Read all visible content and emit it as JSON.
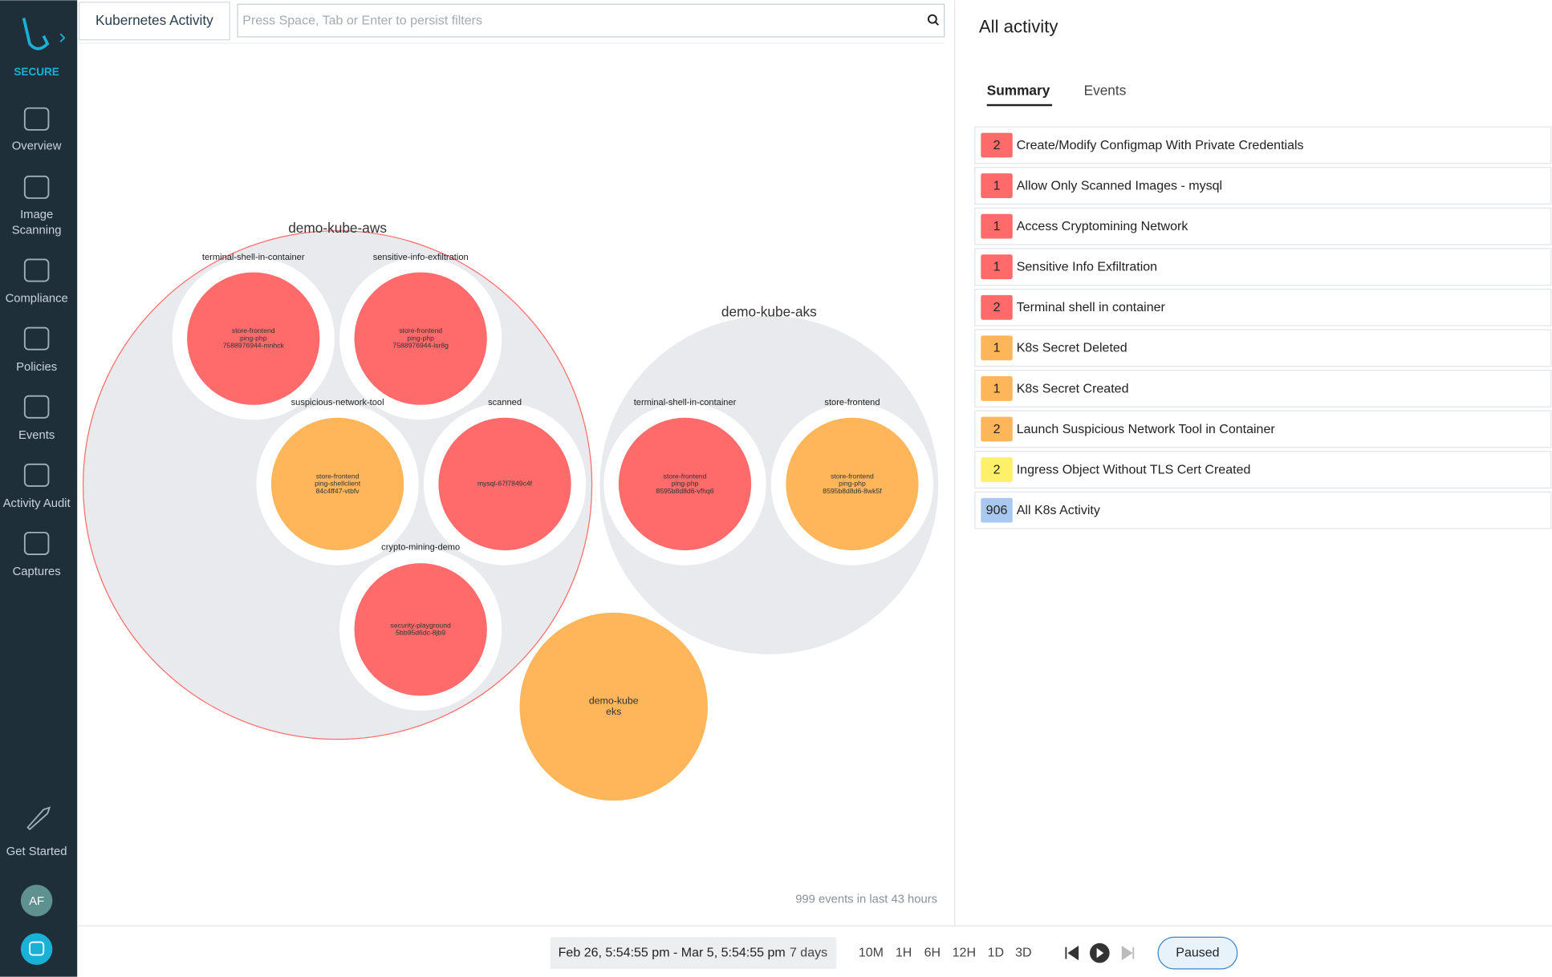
{
  "sidebar": {
    "brand": "SECURE",
    "nav": [
      [
        "Overview"
      ],
      [
        "Image",
        "Scanning"
      ],
      [
        "Compliance"
      ],
      [
        "Policies"
      ],
      [
        "Events"
      ],
      [
        "Activity Audit"
      ],
      [
        "Captures"
      ]
    ],
    "get_started": "Get Started",
    "avatar": "AF"
  },
  "header": {
    "title": "Kubernetes Activity",
    "search_placeholder": "Press Space, Tab or Enter to persist filters"
  },
  "graph": {
    "clusters": [
      {
        "label": "demo-kube-aws",
        "nodes": [
          {
            "label": "terminal-shell-in-container",
            "lines": [
              "store-frontend",
              "ping-php",
              "7588976944-mnhck"
            ],
            "color": "#ff6b6b"
          },
          {
            "label": "sensitive-info-exfiltration",
            "lines": [
              "store-frontend",
              "ping-php",
              "7588976944-lsr8g"
            ],
            "color": "#ff6b6b"
          },
          {
            "label": "suspicious-network-tool",
            "lines": [
              "store-frontend",
              "ping-shellclient",
              "84c4ff47-vtbfv"
            ],
            "color": "#ffb55a"
          },
          {
            "label": "scanned",
            "lines": [
              "mysql-67f7849c4f"
            ],
            "color": "#ff6b6b"
          },
          {
            "label": "crypto-mining-demo",
            "lines": [
              "security-playground",
              "5bb95d6dc-8jb9"
            ],
            "color": "#ff6b6b"
          }
        ]
      },
      {
        "label": "demo-kube-aks",
        "nodes": [
          {
            "label": "terminal-shell-in-container",
            "lines": [
              "store-frontend",
              "ping-php",
              "8595b8d8d6-vfhq6"
            ],
            "color": "#ff6b6b"
          },
          {
            "label": "store-frontend",
            "lines": [
              "store-frontend",
              "ping-php",
              "8595b8d8d6-8wk5f"
            ],
            "color": "#ffb55a"
          }
        ]
      },
      {
        "lines": [
          "demo-kube",
          "eks"
        ],
        "color": "#ffb55a"
      }
    ],
    "footer_note": "999 events in last 43 hours"
  },
  "panel": {
    "title": "All activity",
    "tabs": [
      "Summary",
      "Events"
    ],
    "items": [
      {
        "count": 2,
        "label": "Create/Modify Configmap With Private Credentials",
        "color": "#ff6b6b"
      },
      {
        "count": 1,
        "label": "Allow Only Scanned Images - mysql",
        "color": "#ff6b6b"
      },
      {
        "count": 1,
        "label": "Access Cryptomining Network",
        "color": "#ff6b6b"
      },
      {
        "count": 1,
        "label": "Sensitive Info Exfiltration",
        "color": "#ff6b6b"
      },
      {
        "count": 2,
        "label": "Terminal shell in container",
        "color": "#ff6b6b"
      },
      {
        "count": 1,
        "label": "K8s Secret Deleted",
        "color": "#ffb55a"
      },
      {
        "count": 1,
        "label": "K8s Secret Created",
        "color": "#ffb55a"
      },
      {
        "count": 2,
        "label": "Launch Suspicious Network Tool in Container",
        "color": "#ffb55a"
      },
      {
        "count": 2,
        "label": "Ingress Object Without TLS Cert Created",
        "color": "#fff06a"
      },
      {
        "count": 906,
        "label": "All K8s Activity",
        "color": "#a8c8f0"
      }
    ]
  },
  "footer": {
    "range": "Feb 26, 5:54:55 pm - Mar 5, 5:54:55 pm",
    "duration": "7 days",
    "zoom": [
      "10M",
      "1H",
      "6H",
      "12H",
      "1D",
      "3D"
    ],
    "status": "Paused"
  }
}
